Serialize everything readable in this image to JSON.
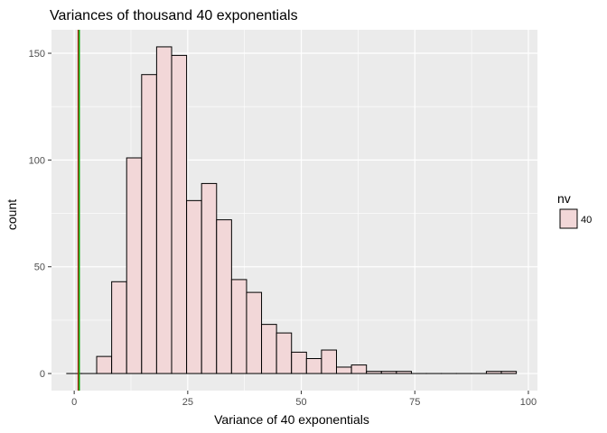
{
  "chart_data": {
    "type": "bar",
    "title": "Variances of thousand 40 exponentials",
    "xlabel": "Variance of 40 exponentials",
    "ylabel": "count",
    "xlim": [
      -5,
      102
    ],
    "ylim": [
      -8,
      161
    ],
    "x_ticks": [
      0,
      25,
      50,
      75,
      100
    ],
    "y_ticks": [
      0,
      50,
      100,
      150
    ],
    "bin_width": 3.3,
    "bin_starts": [
      -1.65,
      1.65,
      4.95,
      8.25,
      11.55,
      14.85,
      18.15,
      21.45,
      24.75,
      28.05,
      31.35,
      34.65,
      37.95,
      41.25,
      44.55,
      47.85,
      51.15,
      54.45,
      57.75,
      61.05,
      64.35,
      67.65,
      70.95,
      74.25,
      77.55,
      80.85,
      84.15,
      87.45,
      90.75,
      94.05
    ],
    "counts": [
      0,
      0,
      8,
      43,
      101,
      140,
      153,
      149,
      81,
      89,
      72,
      44,
      38,
      23,
      19,
      10,
      7,
      11,
      3,
      4,
      1,
      1,
      1,
      0,
      0,
      0,
      0,
      0,
      1,
      1
    ],
    "vline_x": 1,
    "vline_color": "#00aa00",
    "vline_marker_color": "#cc0000",
    "bar_fill": "#f2d7d8",
    "bar_stroke": "#000000",
    "panel_background": "#ebebeb",
    "grid": true,
    "grid_color": "#ffffff",
    "legend": {
      "title": "nv",
      "entries": [
        {
          "label": "40",
          "color": "#f2d7d8"
        }
      ],
      "position": "right"
    }
  }
}
